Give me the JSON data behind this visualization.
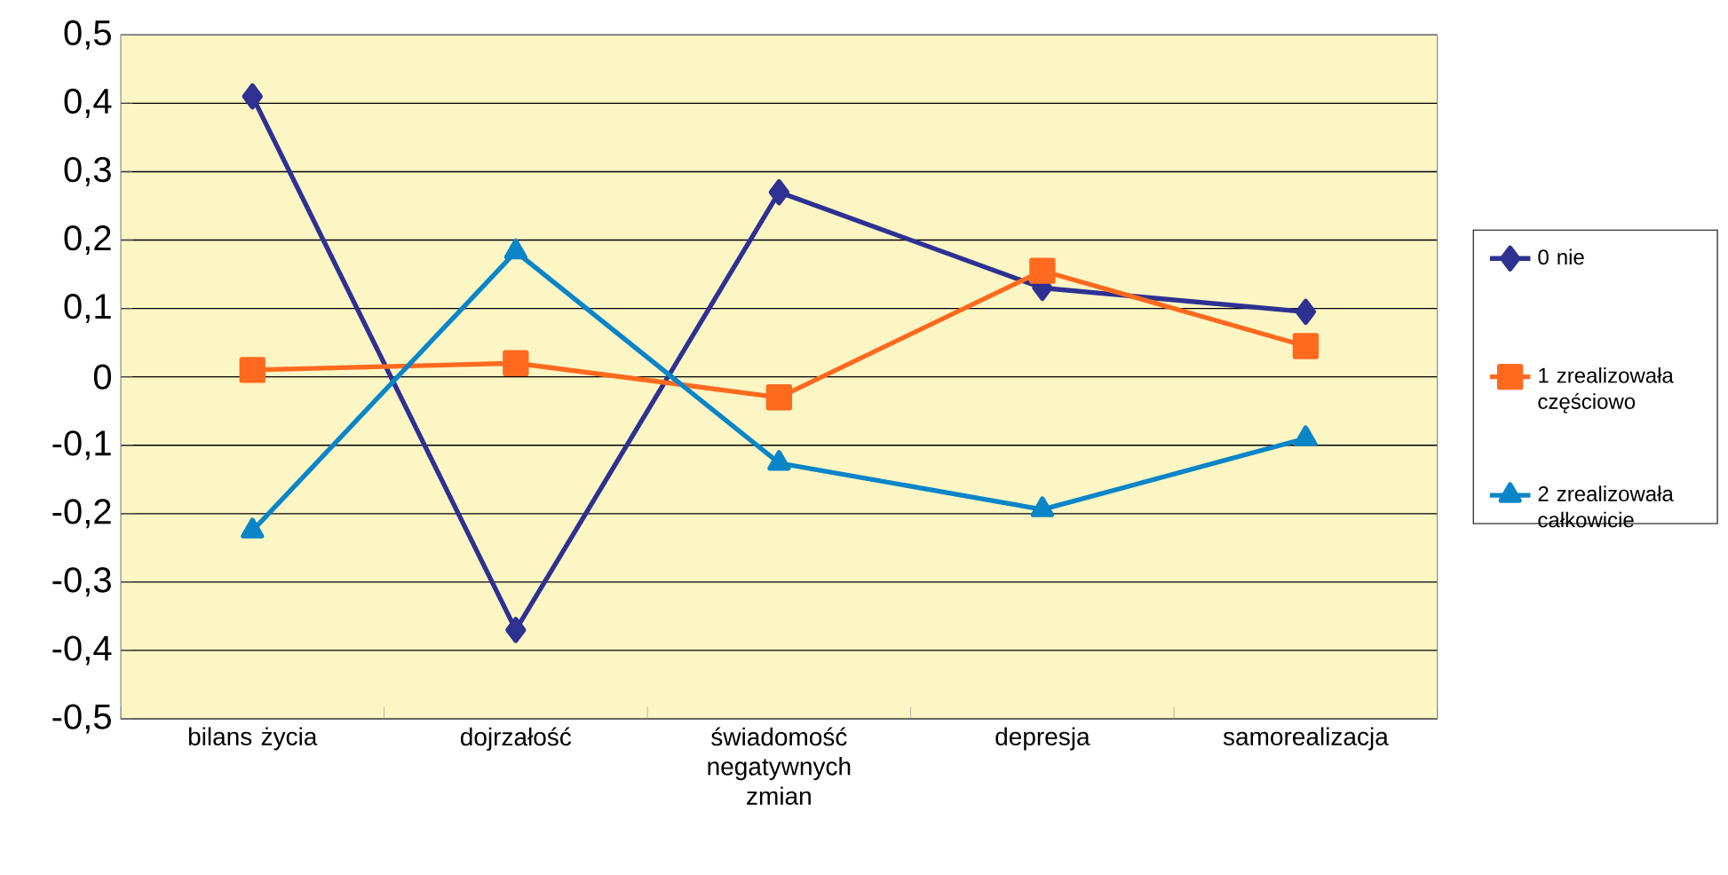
{
  "chart_data": {
    "type": "line",
    "categories": [
      "bilans życia",
      "dojrzałość",
      "świadomość negatywnych zmian",
      "depresja",
      "samorealizacja"
    ],
    "series": [
      {
        "name": "0 nie",
        "color": "#2e3192",
        "marker": "diamond",
        "values": [
          0.41,
          -0.37,
          0.27,
          0.13,
          0.095
        ]
      },
      {
        "name": "1 zrealizowała częściowo",
        "color": "#ff6a1f",
        "marker": "square",
        "values": [
          0.01,
          0.02,
          -0.03,
          0.155,
          0.045
        ]
      },
      {
        "name": "2 zrealizowała całkowicie",
        "color": "#0a85c8",
        "marker": "triangle",
        "values": [
          -0.225,
          0.183,
          -0.126,
          -0.194,
          -0.09
        ]
      }
    ],
    "ylim": [
      -0.5,
      0.5
    ],
    "yticks": [
      {
        "value": -0.5,
        "label": "-0,5"
      },
      {
        "value": -0.4,
        "label": "-0,4"
      },
      {
        "value": -0.3,
        "label": "-0,3"
      },
      {
        "value": -0.2,
        "label": "-0,2"
      },
      {
        "value": -0.1,
        "label": "-0,1"
      },
      {
        "value": 0,
        "label": "0"
      },
      {
        "value": 0.1,
        "label": "0,1"
      },
      {
        "value": 0.2,
        "label": "0,2"
      },
      {
        "value": 0.3,
        "label": "0,3"
      },
      {
        "value": 0.4,
        "label": "0,4"
      },
      {
        "value": 0.5,
        "label": "0,5"
      }
    ],
    "grid": "y",
    "legend": "right",
    "line_style": "solid"
  }
}
